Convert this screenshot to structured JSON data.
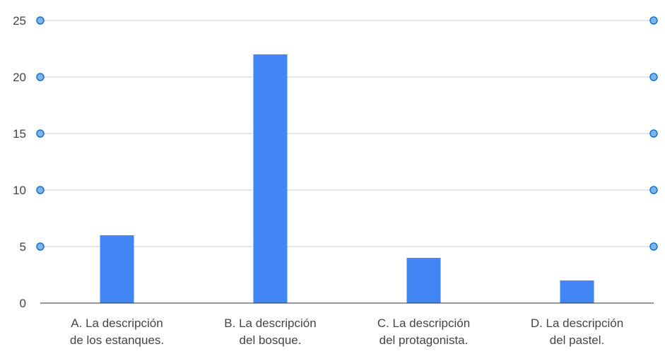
{
  "chart_data": {
    "type": "bar",
    "categories": [
      [
        "A. La descripción",
        "de los estanques."
      ],
      [
        "B. La descripción",
        "del bosque."
      ],
      [
        "C. La descripción",
        "del protagonista."
      ],
      [
        "D. La descripción",
        "del pastel."
      ]
    ],
    "values": [
      6,
      22,
      4,
      2
    ],
    "ylim": [
      0,
      25
    ],
    "yticks": [
      0,
      5,
      10,
      15,
      20,
      25
    ],
    "grid": true,
    "bar_color": "#4285f4",
    "grid_color": "#cccccc",
    "axis_color": "#333333",
    "handle_fill": "#7cb4ec",
    "handle_stroke": "#1a6fd0",
    "tick_label_color": "#444444"
  }
}
